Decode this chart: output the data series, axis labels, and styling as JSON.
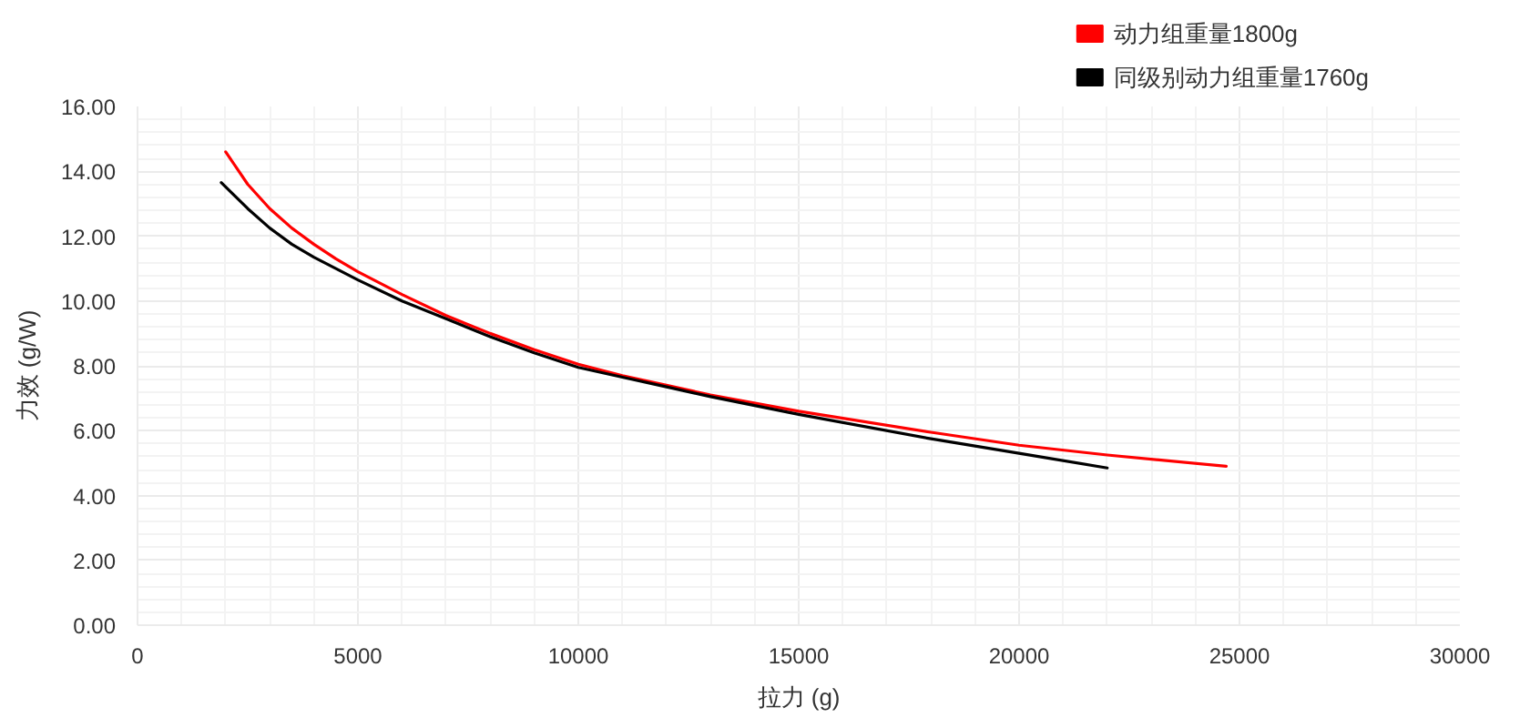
{
  "chart_data": {
    "type": "line",
    "xlabel": "拉力 (g)",
    "ylabel": "力效 (g/W)",
    "xlim": [
      0,
      30000
    ],
    "ylim": [
      0,
      16
    ],
    "xticks": [
      0,
      5000,
      10000,
      15000,
      20000,
      25000,
      30000
    ],
    "yticks": [
      {
        "value": 0,
        "label": "0.00"
      },
      {
        "value": 2,
        "label": "2.00"
      },
      {
        "value": 4,
        "label": "4.00"
      },
      {
        "value": 6,
        "label": "6.00"
      },
      {
        "value": 8,
        "label": "8.00"
      },
      {
        "value": 10,
        "label": "10.00"
      },
      {
        "value": 12,
        "label": "12.00"
      },
      {
        "value": 14,
        "label": "14.00"
      },
      {
        "value": 16,
        "label": "16.00"
      }
    ],
    "grid": true,
    "legend": "top right",
    "line_style": "solid",
    "series": [
      {
        "name": "动力组重量1800g",
        "color": "#ff0000",
        "x": [
          2000,
          2500,
          3000,
          3500,
          4000,
          4500,
          5000,
          6000,
          7000,
          8000,
          9000,
          10000,
          11000,
          12000,
          13000,
          15000,
          18000,
          20000,
          22000,
          24700
        ],
        "values": [
          14.6,
          13.6,
          12.85,
          12.25,
          11.75,
          11.3,
          10.9,
          10.2,
          9.55,
          9.0,
          8.5,
          8.05,
          7.7,
          7.4,
          7.1,
          6.6,
          5.95,
          5.55,
          5.25,
          4.9
        ]
      },
      {
        "name": "同级别动力组重量1760g",
        "color": "#000000",
        "x": [
          1900,
          2500,
          3000,
          3500,
          4000,
          4500,
          5000,
          6000,
          7000,
          8000,
          9000,
          10000,
          11000,
          12000,
          13000,
          15000,
          18000,
          20000,
          22000
        ],
        "values": [
          13.65,
          12.85,
          12.25,
          11.75,
          11.35,
          11.0,
          10.65,
          10.0,
          9.45,
          8.9,
          8.4,
          7.95,
          7.65,
          7.35,
          7.05,
          6.5,
          5.75,
          5.3,
          4.85
        ]
      }
    ]
  }
}
